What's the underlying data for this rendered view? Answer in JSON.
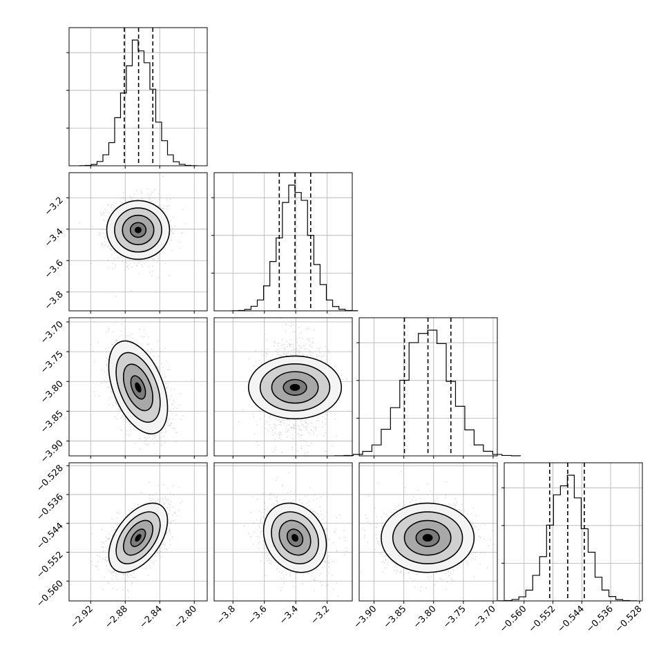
{
  "chart_data": {
    "type": "corner",
    "grid": true,
    "legend": "none",
    "quantile_levels": [
      0.16,
      0.5,
      0.84
    ],
    "parameters": [
      {
        "range": [
          -2.945,
          -2.785
        ],
        "ticks": [
          -2.92,
          -2.88,
          -2.84,
          -2.8
        ],
        "tick_labels": [
          "−2.92",
          "−2.88",
          "−2.84",
          "−2.80"
        ],
        "quantiles": [
          -2.881,
          -2.8645,
          -2.848
        ],
        "mean": -2.865,
        "std": 0.017
      },
      {
        "range": [
          -3.92,
          -3.04
        ],
        "ticks": [
          -3.8,
          -3.6,
          -3.4,
          -3.2
        ],
        "tick_labels": [
          "−3.8",
          "−3.6",
          "−3.4",
          "−3.2"
        ],
        "quantiles": [
          -3.505,
          -3.405,
          -3.305
        ],
        "mean": -3.405,
        "std": 0.1
      },
      {
        "range": [
          -3.925,
          -3.693
        ],
        "ticks": [
          -3.9,
          -3.85,
          -3.8,
          -3.75,
          -3.7
        ],
        "tick_labels": [
          "−3.90",
          "−3.85",
          "−3.80",
          "−3.75",
          "−3.70"
        ],
        "quantiles": [
          -3.849,
          -3.8095,
          -3.771
        ],
        "mean": -3.81,
        "std": 0.039
      },
      {
        "range": [
          -0.5655,
          -0.5272
        ],
        "ticks": [
          -0.56,
          -0.552,
          -0.544,
          -0.536,
          -0.528
        ],
        "tick_labels": [
          "−0.560",
          "−0.552",
          "−0.544",
          "−0.536",
          "−0.528"
        ],
        "quantiles": [
          -0.5529,
          -0.5479,
          -0.5433
        ],
        "mean": -0.548,
        "std": 0.0048
      }
    ],
    "correlations": [
      [
        1.0,
        0.0,
        -0.45,
        0.5
      ],
      [
        0.0,
        1.0,
        0.0,
        -0.2
      ],
      [
        -0.45,
        0.0,
        1.0,
        0.0
      ],
      [
        0.5,
        -0.2,
        0.0,
        1.0
      ]
    ],
    "contour_levels_sigma": [
      0.5,
      1.0,
      1.5,
      2.0
    ]
  }
}
